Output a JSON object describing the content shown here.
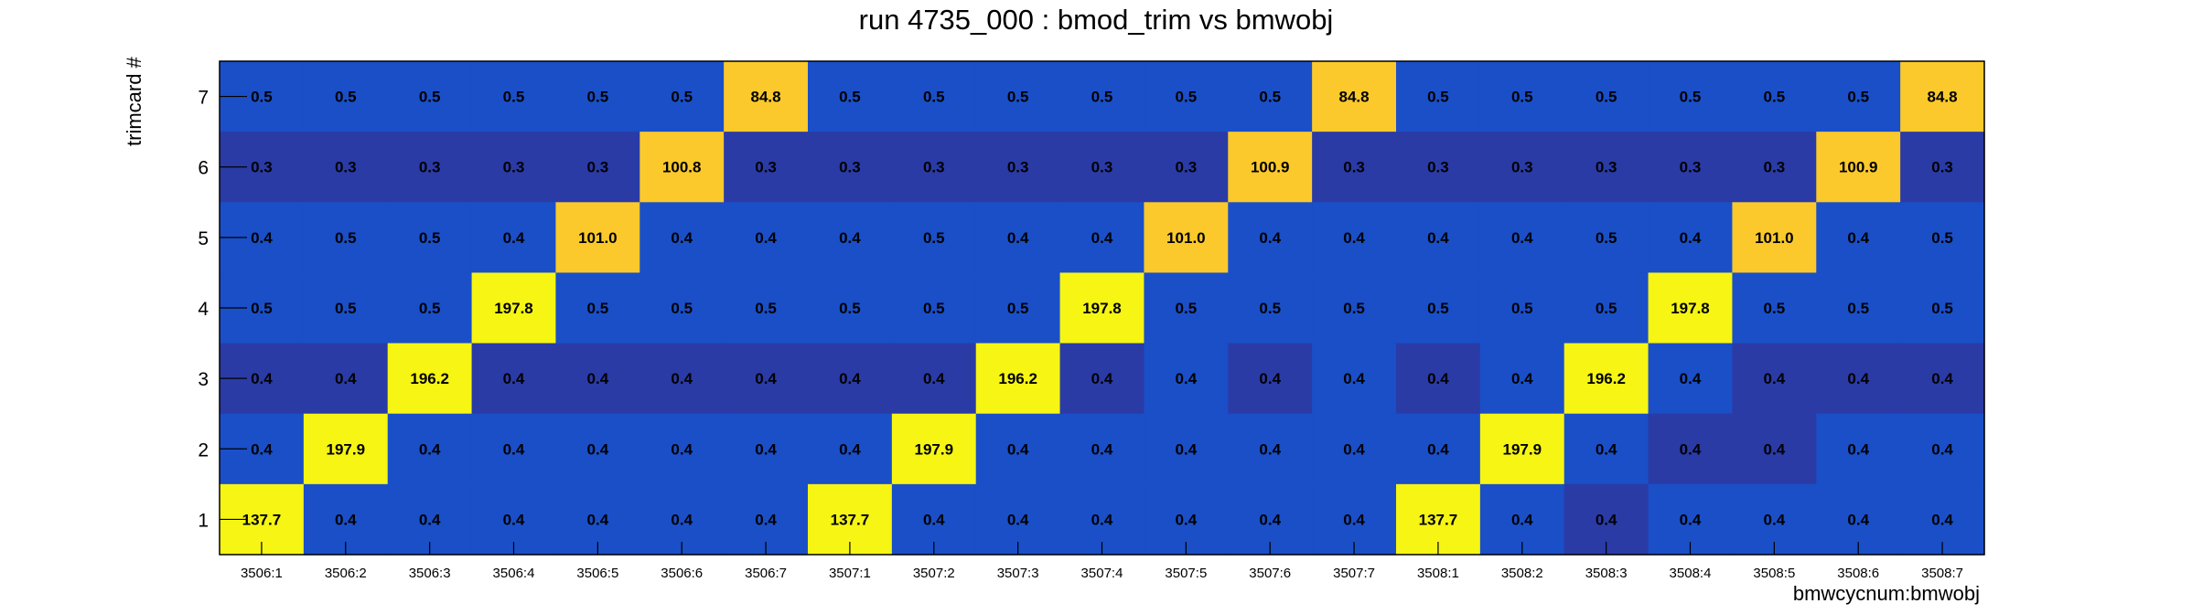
{
  "chart_data": {
    "type": "heatmap",
    "title": "run 4735_000 : bmod_trim vs bmwobj",
    "xlabel": "bmwcycnum:bmwobj",
    "ylabel": "trimcard #",
    "x_categories": [
      "3506:1",
      "3506:2",
      "3506:3",
      "3506:4",
      "3506:5",
      "3506:6",
      "3506:7",
      "3507:1",
      "3507:2",
      "3507:3",
      "3507:4",
      "3507:5",
      "3507:6",
      "3507:7",
      "3508:1",
      "3508:2",
      "3508:3",
      "3508:4",
      "3508:5",
      "3508:6",
      "3508:7"
    ],
    "y_categories": [
      "1",
      "2",
      "3",
      "4",
      "5",
      "6",
      "7"
    ],
    "rows": [
      {
        "y": "7",
        "values": [
          0.5,
          0.5,
          0.5,
          0.5,
          0.5,
          0.5,
          84.8,
          0.5,
          0.5,
          0.5,
          0.5,
          0.5,
          0.5,
          84.8,
          0.5,
          0.5,
          0.5,
          0.5,
          0.5,
          0.5,
          84.8
        ],
        "labels": [
          "0.5",
          "0.5",
          "0.5",
          "0.5",
          "0.5",
          "0.5",
          "84.8",
          "0.5",
          "0.5",
          "0.5",
          "0.5",
          "0.5",
          "0.5",
          "84.8",
          "0.5",
          "0.5",
          "0.5",
          "0.5",
          "0.5",
          "0.5",
          "84.8"
        ]
      },
      {
        "y": "6",
        "values": [
          0.3,
          0.3,
          0.3,
          0.3,
          0.3,
          100.8,
          0.3,
          0.3,
          0.3,
          0.3,
          0.3,
          0.3,
          100.9,
          0.3,
          0.3,
          0.3,
          0.3,
          0.3,
          0.3,
          100.9,
          0.3
        ],
        "labels": [
          "0.3",
          "0.3",
          "0.3",
          "0.3",
          "0.3",
          "100.8",
          "0.3",
          "0.3",
          "0.3",
          "0.3",
          "0.3",
          "0.3",
          "100.9",
          "0.3",
          "0.3",
          "0.3",
          "0.3",
          "0.3",
          "0.3",
          "100.9",
          "0.3"
        ]
      },
      {
        "y": "5",
        "values": [
          0.4,
          0.5,
          0.5,
          0.4,
          101.0,
          0.4,
          0.4,
          0.4,
          0.5,
          0.4,
          0.4,
          101.0,
          0.4,
          0.4,
          0.4,
          0.4,
          0.5,
          0.4,
          101.0,
          0.4,
          0.5
        ],
        "labels": [
          "0.4",
          "0.5",
          "0.5",
          "0.4",
          "101.0",
          "0.4",
          "0.4",
          "0.4",
          "0.5",
          "0.4",
          "0.4",
          "101.0",
          "0.4",
          "0.4",
          "0.4",
          "0.4",
          "0.5",
          "0.4",
          "101.0",
          "0.4",
          "0.5"
        ]
      },
      {
        "y": "4",
        "values": [
          0.5,
          0.5,
          0.5,
          197.8,
          0.5,
          0.5,
          0.5,
          0.5,
          0.5,
          0.5,
          197.8,
          0.5,
          0.5,
          0.5,
          0.5,
          0.5,
          0.5,
          197.8,
          0.5,
          0.5,
          0.5
        ],
        "labels": [
          "0.5",
          "0.5",
          "0.5",
          "197.8",
          "0.5",
          "0.5",
          "0.5",
          "0.5",
          "0.5",
          "0.5",
          "197.8",
          "0.5",
          "0.5",
          "0.5",
          "0.5",
          "0.5",
          "0.5",
          "197.8",
          "0.5",
          "0.5",
          "0.5"
        ]
      },
      {
        "y": "3",
        "values": [
          0.4,
          0.4,
          196.2,
          0.4,
          0.4,
          0.4,
          0.4,
          0.4,
          0.4,
          196.2,
          0.4,
          0.4,
          0.4,
          0.4,
          0.4,
          0.4,
          196.2,
          0.4,
          0.4,
          0.4,
          0.4
        ],
        "labels": [
          "0.4",
          "0.4",
          "196.2",
          "0.4",
          "0.4",
          "0.4",
          "0.4",
          "0.4",
          "0.4",
          "196.2",
          "0.4",
          "0.4",
          "0.4",
          "0.4",
          "0.4",
          "0.4",
          "196.2",
          "0.4",
          "0.4",
          "0.4",
          "0.4"
        ]
      },
      {
        "y": "2",
        "values": [
          0.4,
          197.9,
          0.4,
          0.4,
          0.4,
          0.4,
          0.4,
          0.4,
          197.9,
          0.4,
          0.4,
          0.4,
          0.4,
          0.4,
          0.4,
          197.9,
          0.4,
          0.4,
          0.4,
          0.4,
          0.4
        ],
        "labels": [
          "0.4",
          "197.9",
          "0.4",
          "0.4",
          "0.4",
          "0.4",
          "0.4",
          "0.4",
          "197.9",
          "0.4",
          "0.4",
          "0.4",
          "0.4",
          "0.4",
          "0.4",
          "197.9",
          "0.4",
          "0.4",
          "0.4",
          "0.4",
          "0.4"
        ]
      },
      {
        "y": "1",
        "values": [
          137.7,
          0.4,
          0.4,
          0.4,
          0.4,
          0.4,
          0.4,
          137.7,
          0.4,
          0.4,
          0.4,
          0.4,
          0.4,
          0.4,
          137.7,
          0.4,
          0.4,
          0.4,
          0.4,
          0.4,
          0.4
        ],
        "labels": [
          "137.7",
          "0.4",
          "0.4",
          "0.4",
          "0.4",
          "0.4",
          "0.4",
          "137.7",
          "0.4",
          "0.4",
          "0.4",
          "0.4",
          "0.4",
          "0.4",
          "137.7",
          "0.4",
          "0.4",
          "0.4",
          "0.4",
          "0.4",
          "0.4"
        ]
      }
    ],
    "dark_cells": [
      {
        "row": "6",
        "cols": "all"
      },
      {
        "row": "3",
        "cols": [
          0,
          1,
          3,
          4,
          5,
          6,
          7,
          8,
          10,
          12,
          14,
          18,
          19,
          20
        ]
      },
      {
        "row": "2",
        "cols": [
          17,
          18
        ]
      },
      {
        "row": "1",
        "cols": [
          16
        ]
      }
    ],
    "colors": {
      "cell_low": "#1a4fc8",
      "cell_low_dark": "#2a3ba6",
      "cell_mid": "#fbc92b",
      "cell_high": "#f6f514",
      "frame": "#000000"
    },
    "grid": false,
    "legend": "none"
  }
}
